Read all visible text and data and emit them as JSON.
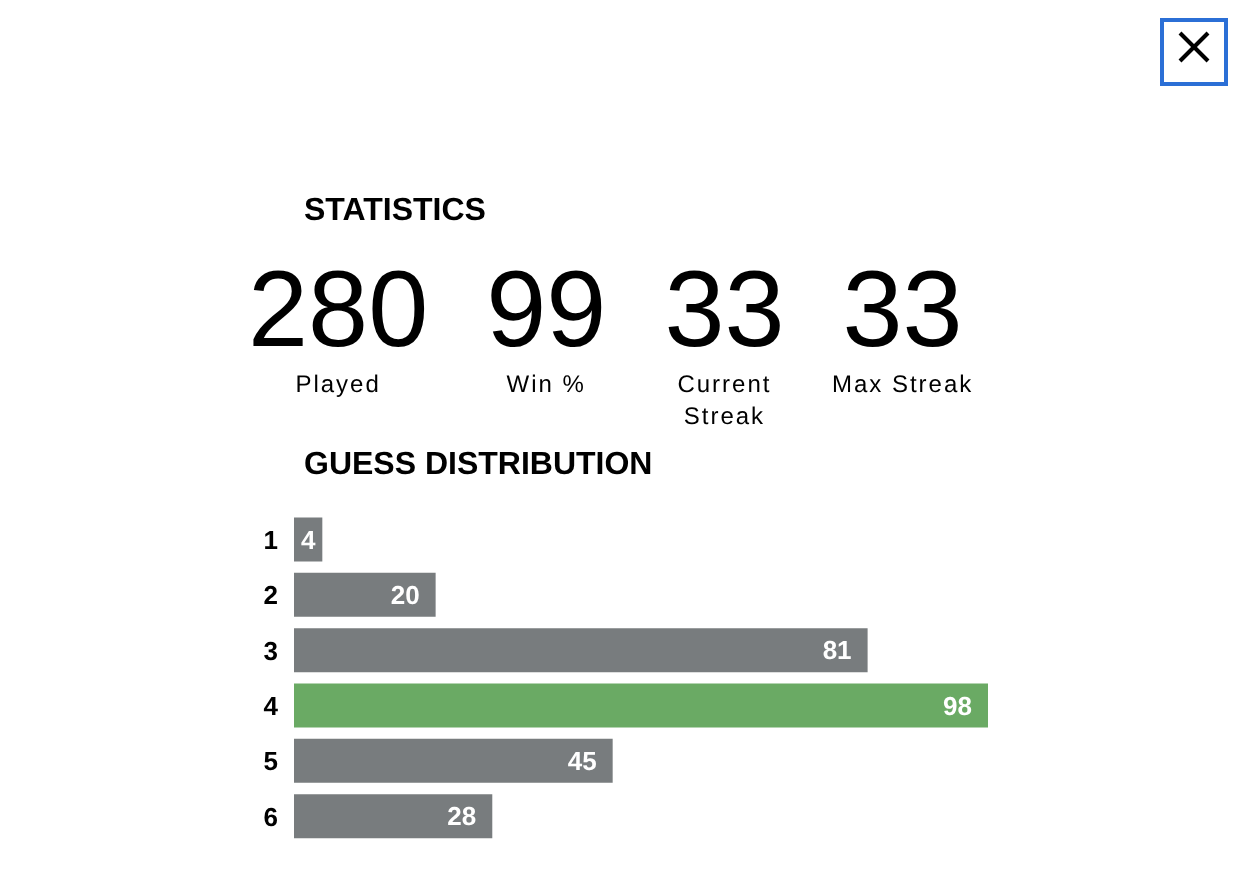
{
  "chart_data": [
    {
      "type": "other",
      "title": "STATISTICS",
      "categories": [
        "Played",
        "Win %",
        "Current Streak",
        "Max Streak"
      ],
      "values": [
        280,
        99,
        33,
        33
      ],
      "data_labels": true
    },
    {
      "type": "bar",
      "orientation": "horizontal",
      "title": "GUESS DISTRIBUTION",
      "categories": [
        "1",
        "2",
        "3",
        "4",
        "5",
        "6"
      ],
      "values": [
        4,
        20,
        81,
        98,
        45,
        28
      ],
      "colors": [
        "#787c7e",
        "#787c7e",
        "#787c7e",
        "#6aaa64",
        "#787c7e",
        "#787c7e"
      ],
      "data_labels": true,
      "tick_labels": "y"
    }
  ]
}
